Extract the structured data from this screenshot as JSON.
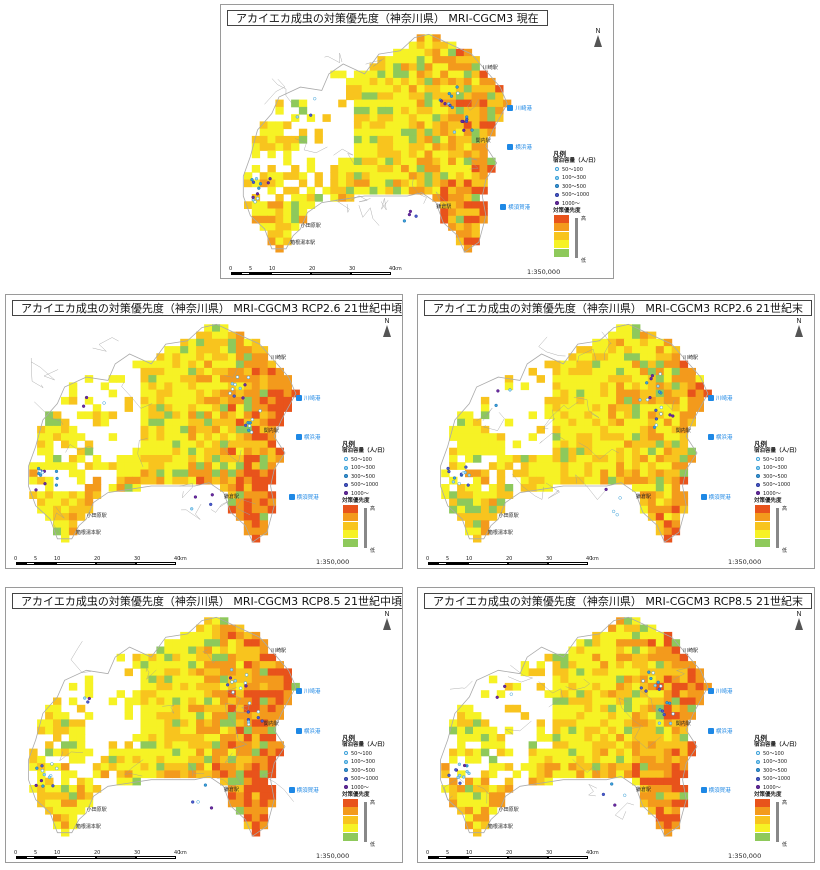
{
  "colors": {
    "high": "#e8531b",
    "orange": "#f39a1c",
    "amber": "#f8c41e",
    "yellow": "#f6f225",
    "green": "#8ec95b",
    "sea": "#ffffff",
    "boundary": "#aaaaaa",
    "port": "#1e88e5"
  },
  "panels": [
    {
      "id": "current",
      "title": "アカイエカ成虫の対策優先度（神奈川県） MRI-CGCM3 現在",
      "scale_ratio": "1:350,000",
      "intensity": 0.45
    },
    {
      "id": "rcp26mid",
      "title": "アカイエカ成虫の対策優先度（神奈川県） MRI-CGCM3 RCP2.6 21世紀中頃",
      "scale_ratio": "1:350,000",
      "intensity": 0.58
    },
    {
      "id": "rcp26end",
      "title": "アカイエカ成虫の対策優先度（神奈川県） MRI-CGCM3 RCP2.6 21世紀末",
      "scale_ratio": "1:350,000",
      "intensity": 0.32
    },
    {
      "id": "rcp85mid",
      "title": "アカイエカ成虫の対策優先度（神奈川県） MRI-CGCM3 RCP8.5 21世紀中頃",
      "scale_ratio": "1:350,000",
      "intensity": 0.6
    },
    {
      "id": "rcp85end",
      "title": "アカイエカ成虫の対策優先度（神奈川県） MRI-CGCM3 RCP8.5 21世紀末",
      "scale_ratio": "1:350,000",
      "intensity": 0.5
    }
  ],
  "legend": {
    "heading": "凡例",
    "capacity_heading": "宿泊容量（人/日）",
    "capacity_classes": [
      {
        "label": "50～100",
        "color": "#ffffff",
        "stroke": "#3aa0d8"
      },
      {
        "label": "100～300",
        "color": "#9fd4f0",
        "stroke": "#3aa0d8"
      },
      {
        "label": "300～500",
        "color": "#3aa0d8",
        "stroke": "#1d6fb0"
      },
      {
        "label": "500～1000",
        "color": "#4a5bd0",
        "stroke": "#2a3a9a"
      },
      {
        "label": "1000～",
        "color": "#6a2aa0",
        "stroke": "#4a1a80"
      }
    ],
    "priority_heading": "対策優先度",
    "priority_high": "高",
    "priority_low": "低"
  },
  "stations": {
    "kawasaki": "川崎駅",
    "kannai": "関内駅",
    "kamakura": "鎌倉駅",
    "odawara": "小田原駅",
    "hakone": "箱根湯本駅"
  },
  "ports": {
    "kawasaki_port": "川崎港",
    "yokohama_port": "横浜港",
    "yokosuka_port": "横須賀港"
  },
  "scale_ticks": [
    "0",
    "5",
    "10",
    "20",
    "30",
    "40"
  ],
  "scale_unit": "km",
  "north_label": "N"
}
